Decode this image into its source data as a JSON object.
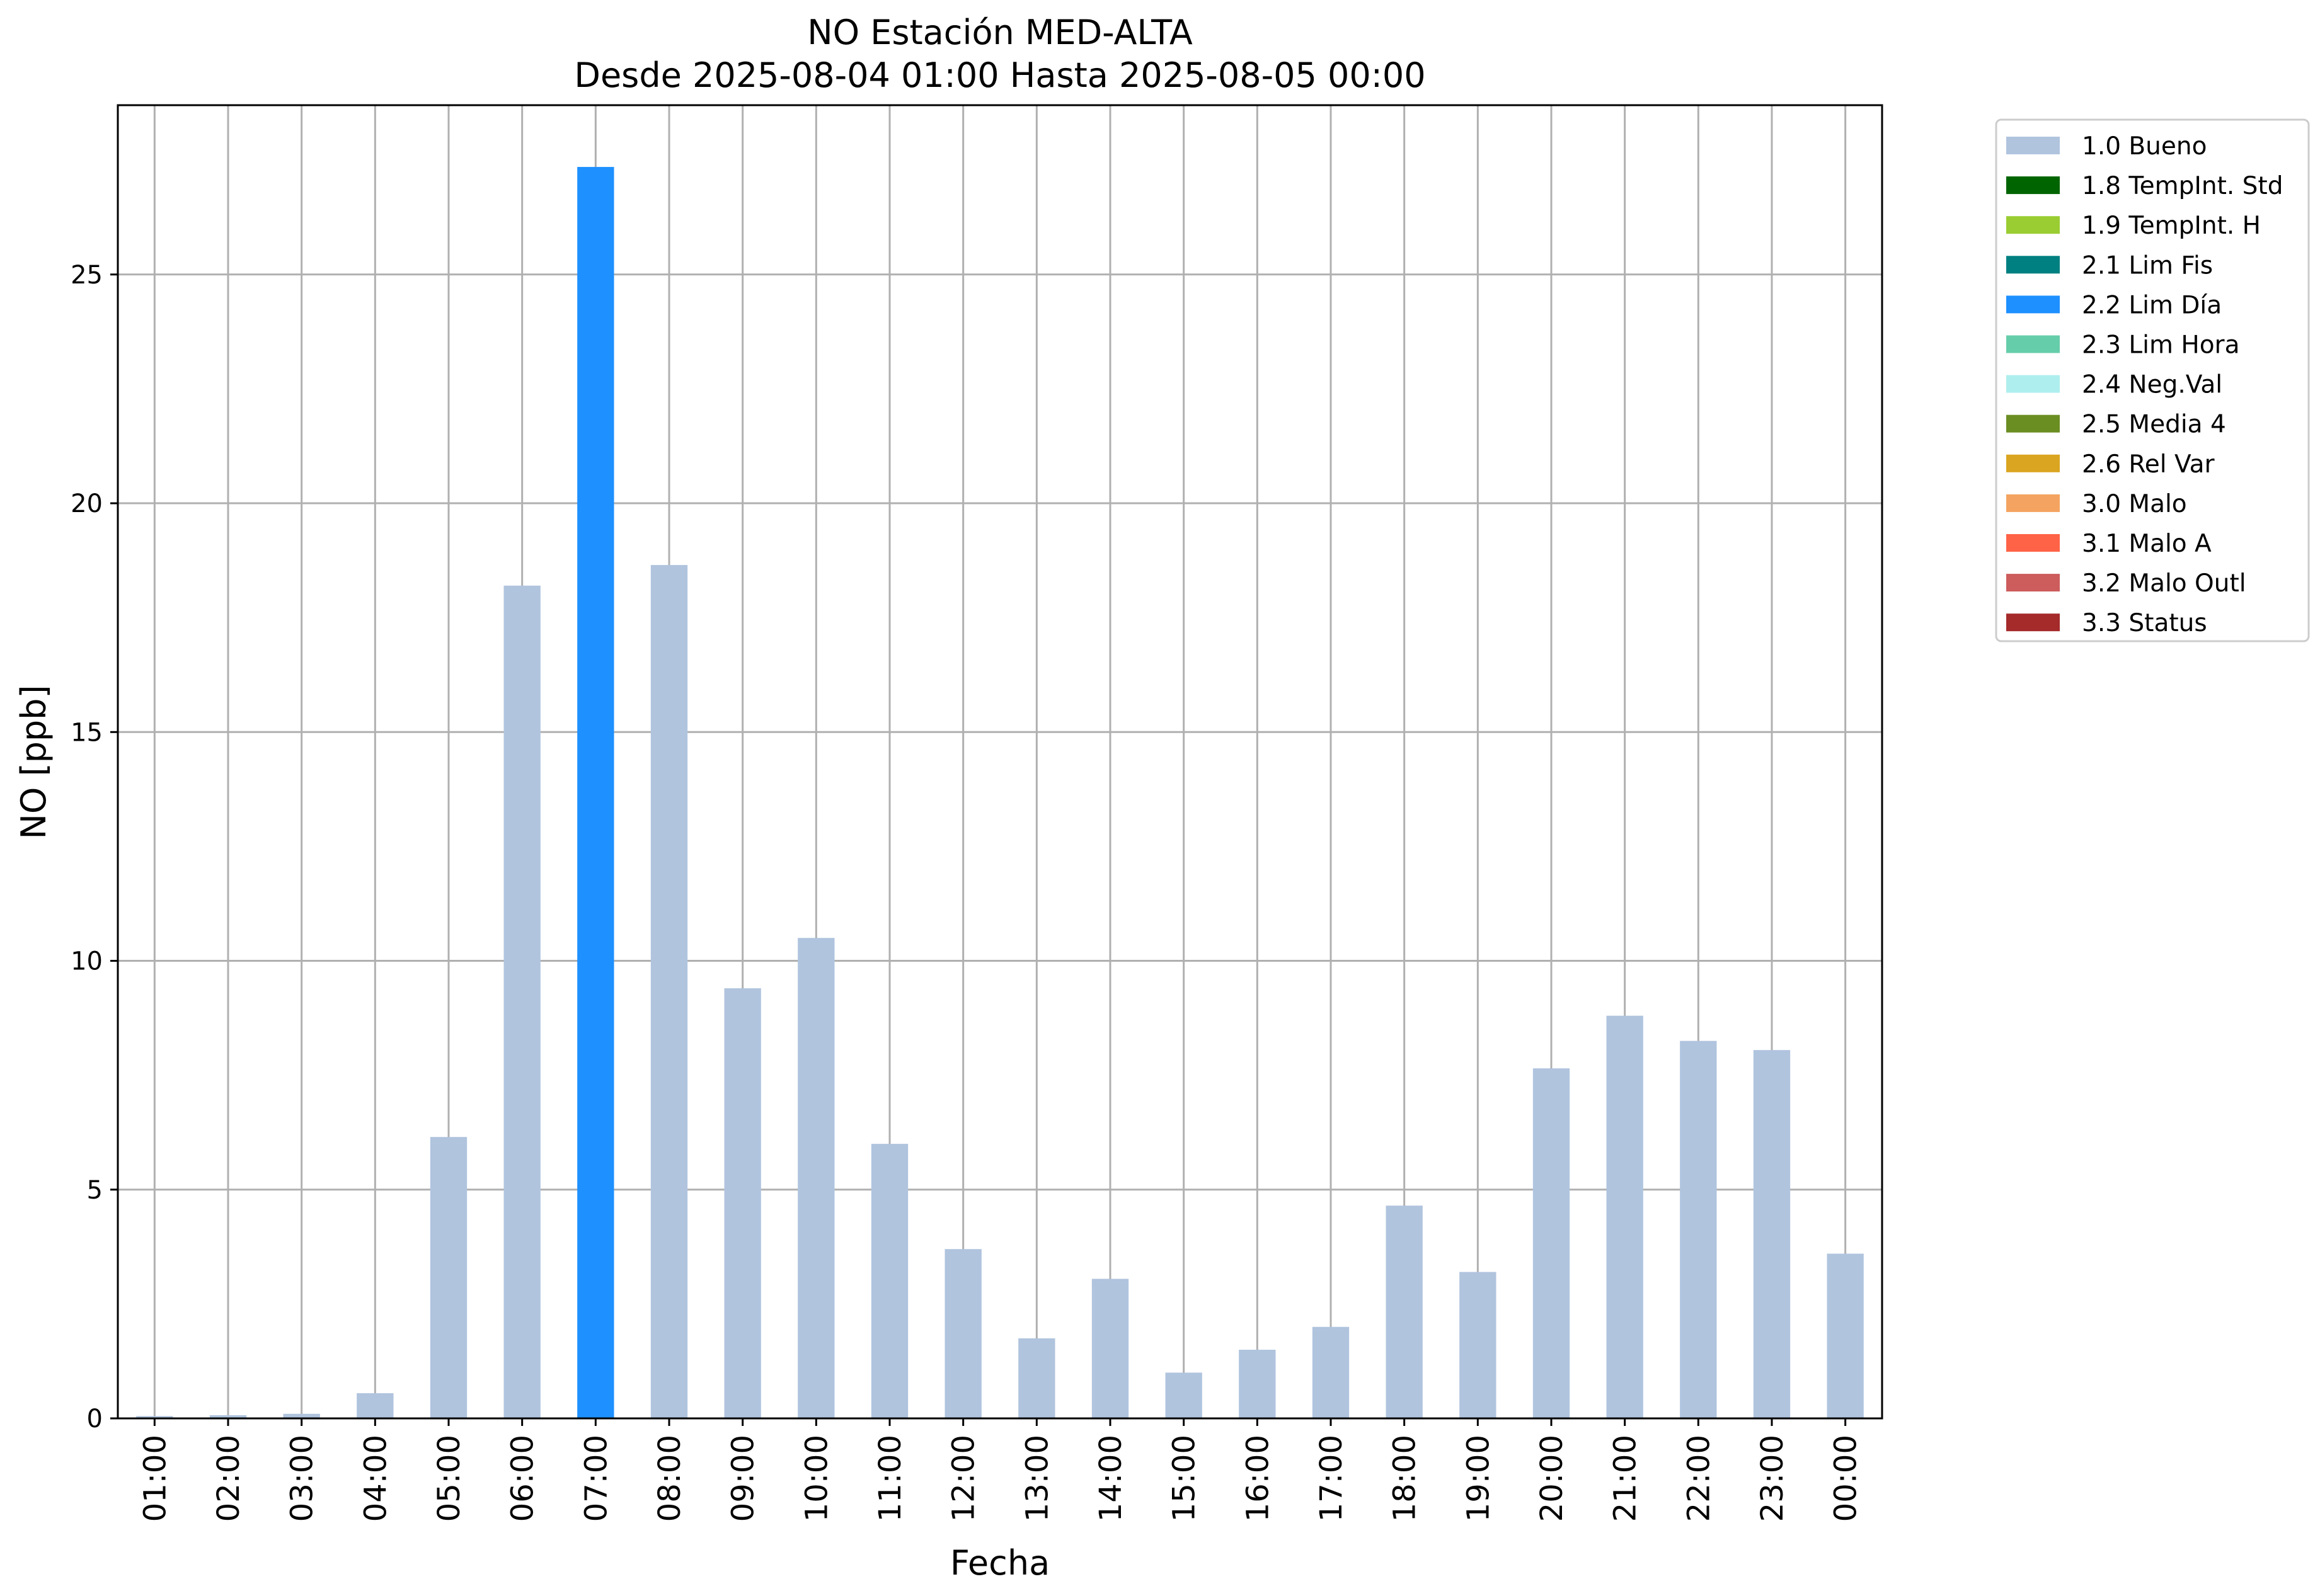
{
  "chart_data": {
    "type": "bar",
    "title": [
      "NO Estación MED-ALTA",
      "Desde 2025-08-04 01:00 Hasta 2025-08-05 00:00"
    ],
    "xlabel": "Fecha",
    "ylabel": "NO [ppb]",
    "ylim": [
      0,
      28.7
    ],
    "yticks": [
      0,
      5,
      10,
      15,
      20,
      25
    ],
    "grid": true,
    "legend_position": "outside-top-right",
    "categories": [
      "01:00",
      "02:00",
      "03:00",
      "04:00",
      "05:00",
      "06:00",
      "07:00",
      "08:00",
      "09:00",
      "10:00",
      "11:00",
      "12:00",
      "13:00",
      "14:00",
      "15:00",
      "16:00",
      "17:00",
      "18:00",
      "19:00",
      "20:00",
      "21:00",
      "22:00",
      "23:00",
      "00:00"
    ],
    "values": [
      0.05,
      0.07,
      0.1,
      0.55,
      6.15,
      18.2,
      27.35,
      18.65,
      9.4,
      10.5,
      6.0,
      3.7,
      1.75,
      3.05,
      1.0,
      1.5,
      2.0,
      4.65,
      3.2,
      7.65,
      8.8,
      8.25,
      8.05,
      3.6
    ],
    "flags": [
      "1.0 Bueno",
      "1.0 Bueno",
      "1.0 Bueno",
      "1.0 Bueno",
      "1.0 Bueno",
      "1.0 Bueno",
      "2.2 Lim Día",
      "1.0 Bueno",
      "1.0 Bueno",
      "1.0 Bueno",
      "1.0 Bueno",
      "1.0 Bueno",
      "1.0 Bueno",
      "1.0 Bueno",
      "1.0 Bueno",
      "1.0 Bueno",
      "1.0 Bueno",
      "1.0 Bueno",
      "1.0 Bueno",
      "1.0 Bueno",
      "1.0 Bueno",
      "1.0 Bueno",
      "1.0 Bueno",
      "1.0 Bueno"
    ],
    "legend": [
      {
        "name": "1.0 Bueno",
        "color": "#b0c4de"
      },
      {
        "name": "1.8 TempInt. Std",
        "color": "#006400"
      },
      {
        "name": "1.9 TempInt. H",
        "color": "#9acd32"
      },
      {
        "name": "2.1 Lim Fis",
        "color": "#008080"
      },
      {
        "name": "2.2 Lim Día",
        "color": "#1e90ff"
      },
      {
        "name": "2.3 Lim Hora",
        "color": "#66cdaa"
      },
      {
        "name": "2.4 Neg.Val",
        "color": "#afeeee"
      },
      {
        "name": "2.5 Media 4",
        "color": "#6b8e23"
      },
      {
        "name": "2.6 Rel Var",
        "color": "#daa520"
      },
      {
        "name": "3.0 Malo",
        "color": "#f4a460"
      },
      {
        "name": "3.1 Malo A",
        "color": "#ff6347"
      },
      {
        "name": "3.2 Malo Outl",
        "color": "#cd5c5c"
      },
      {
        "name": "3.3 Status",
        "color": "#a52a2a"
      }
    ]
  }
}
